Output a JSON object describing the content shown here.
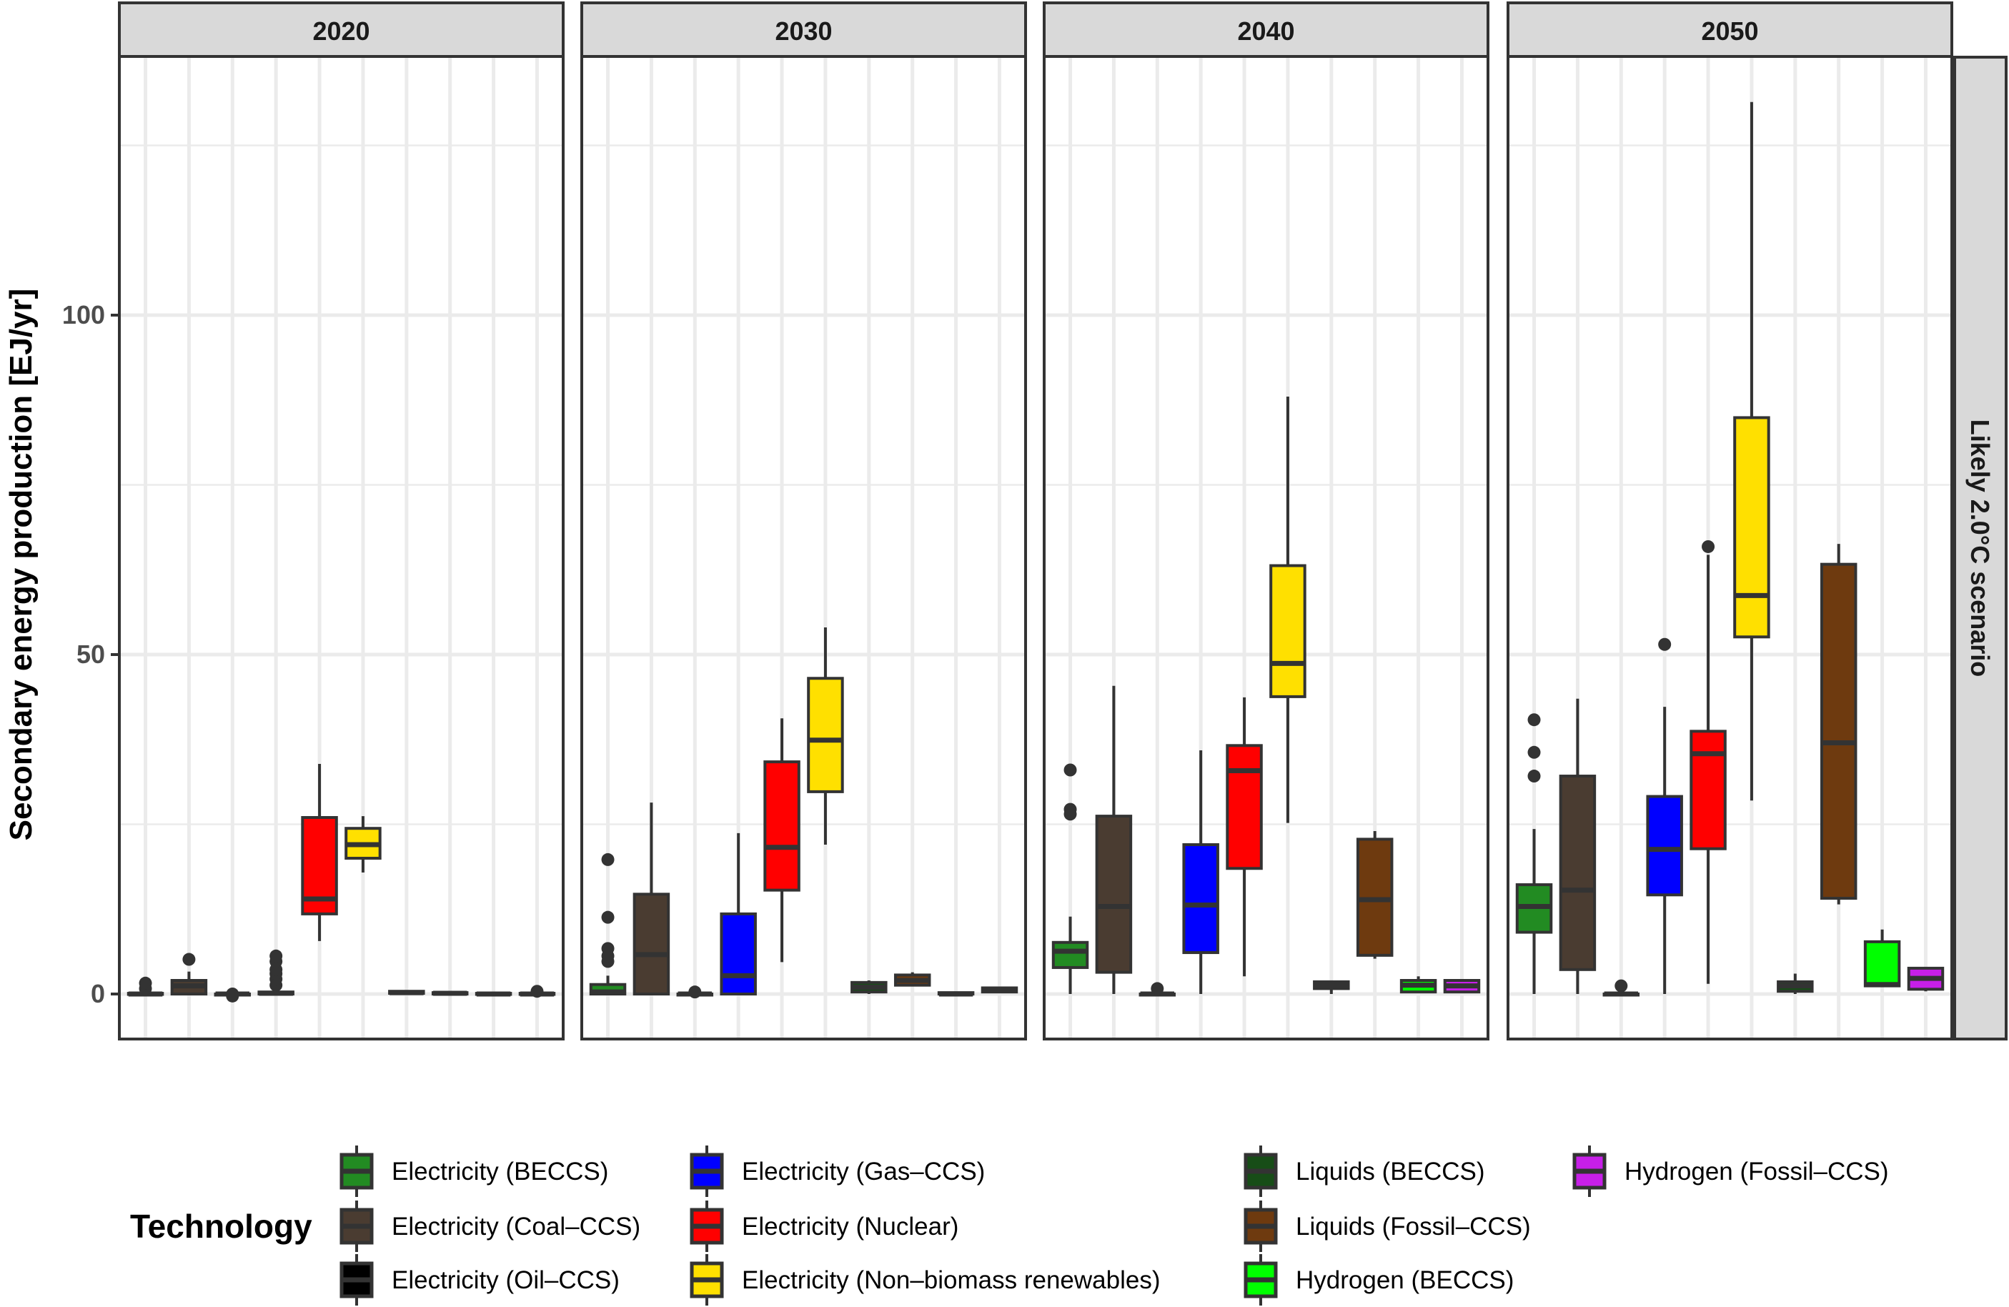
{
  "chart_data": {
    "type": "boxplot",
    "title": "",
    "xlabel": "",
    "ylabel": "Secondary energy production [EJ/yr]",
    "ylim": [
      -6.5,
      138
    ],
    "yticks": [
      0,
      50,
      100
    ],
    "ytick_labels": [
      "0",
      "50",
      "100"
    ],
    "grid": true,
    "facet_row_label": "Likely 2.0°C scenario",
    "legend": {
      "title": "Technology",
      "position": "bottom",
      "columns": [
        [
          "Electricity (BECCS)",
          "Electricity (Coal–CCS)",
          "Electricity (Oil–CCS)"
        ],
        [
          "Electricity (Gas–CCS)",
          "Electricity (Nuclear)",
          "Electricity (Non–biomass renewables)"
        ],
        [
          "Liquids (BECCS)",
          "Liquids (Fossil–CCS)",
          "Hydrogen (BECCS)"
        ],
        [
          "Hydrogen (Fossil–CCS)"
        ]
      ]
    },
    "technologies": [
      {
        "name": "Electricity (BECCS)",
        "color": "#228B22"
      },
      {
        "name": "Electricity (Coal–CCS)",
        "color": "#4A3C31"
      },
      {
        "name": "Electricity (Oil–CCS)",
        "color": "#000000"
      },
      {
        "name": "Electricity (Gas–CCS)",
        "color": "#0000FF"
      },
      {
        "name": "Electricity (Nuclear)",
        "color": "#FF0000"
      },
      {
        "name": "Electricity (Non–biomass renewables)",
        "color": "#FFE000"
      },
      {
        "name": "Liquids (BECCS)",
        "color": "#174D17"
      },
      {
        "name": "Liquids (Fossil–CCS)",
        "color": "#6E3A0F"
      },
      {
        "name": "Hydrogen (BECCS)",
        "color": "#00FF00"
      },
      {
        "name": "Hydrogen (Fossil–CCS)",
        "color": "#C71FE8"
      }
    ],
    "panels": [
      {
        "year": "2020",
        "boxes": [
          {
            "lo": 0,
            "q1": 0,
            "med": 0,
            "q3": 0.1,
            "hi": 0.3,
            "outliers": [
              0.8,
              1.6
            ]
          },
          {
            "lo": 0,
            "q1": 0,
            "med": 1.2,
            "q3": 2.0,
            "hi": 3.3,
            "outliers": [
              5.1
            ]
          },
          {
            "lo": 0,
            "q1": 0,
            "med": 0,
            "q3": 0,
            "hi": 0,
            "outliers": [
              0,
              -0.3
            ]
          },
          {
            "lo": 0,
            "q1": 0,
            "med": 0.1,
            "q3": 0.3,
            "hi": 0.6,
            "outliers": [
              1.3,
              2.2,
              3.0,
              3.6,
              4.8,
              5.6
            ]
          },
          {
            "lo": 7.8,
            "q1": 11.8,
            "med": 14.0,
            "q3": 26.0,
            "hi": 33.9,
            "outliers": []
          },
          {
            "lo": 17.9,
            "q1": 20.0,
            "med": 22.0,
            "q3": 24.4,
            "hi": 26.2,
            "outliers": []
          },
          {
            "lo": 0,
            "q1": 0.1,
            "med": 0.2,
            "q3": 0.4,
            "hi": 0.4,
            "outliers": []
          },
          {
            "lo": 0,
            "q1": 0,
            "med": 0.1,
            "q3": 0.2,
            "hi": 0.2,
            "outliers": []
          },
          {
            "lo": 0,
            "q1": 0,
            "med": 0,
            "q3": 0.1,
            "hi": 0.1,
            "outliers": []
          },
          {
            "lo": 0,
            "q1": 0,
            "med": 0,
            "q3": 0.1,
            "hi": 0.1,
            "outliers": [
              0.4
            ]
          }
        ]
      },
      {
        "year": "2030",
        "boxes": [
          {
            "lo": 0,
            "q1": 0,
            "med": 0.3,
            "q3": 1.4,
            "hi": 2.7,
            "outliers": [
              4.8,
              5.6,
              6.7,
              11.3,
              19.8
            ]
          },
          {
            "lo": 0,
            "q1": 0,
            "med": 5.8,
            "q3": 14.7,
            "hi": 28.2,
            "outliers": []
          },
          {
            "lo": 0,
            "q1": 0,
            "med": 0,
            "q3": 0,
            "hi": 0,
            "outliers": [
              0.3
            ]
          },
          {
            "lo": 0,
            "q1": 0,
            "med": 2.7,
            "q3": 11.8,
            "hi": 23.7,
            "outliers": []
          },
          {
            "lo": 4.7,
            "q1": 15.3,
            "med": 21.6,
            "q3": 34.2,
            "hi": 40.6,
            "outliers": []
          },
          {
            "lo": 22.0,
            "q1": 29.8,
            "med": 37.4,
            "q3": 46.5,
            "hi": 54.0,
            "outliers": []
          },
          {
            "lo": 0,
            "q1": 0.3,
            "med": 1.0,
            "q3": 1.7,
            "hi": 2.0,
            "outliers": []
          },
          {
            "lo": 1.3,
            "q1": 1.3,
            "med": 2.0,
            "q3": 2.8,
            "hi": 3.2,
            "outliers": []
          },
          {
            "lo": 0,
            "q1": 0,
            "med": 0,
            "q3": 0.2,
            "hi": 0.2,
            "outliers": []
          },
          {
            "lo": 0.3,
            "q1": 0.3,
            "med": 0.6,
            "q3": 0.9,
            "hi": 0.9,
            "outliers": []
          }
        ]
      },
      {
        "year": "2040",
        "boxes": [
          {
            "lo": 0,
            "q1": 3.9,
            "med": 6.3,
            "q3": 7.6,
            "hi": 11.4,
            "outliers": [
              26.5,
              27.2,
              33.0
            ]
          },
          {
            "lo": 0,
            "q1": 3.2,
            "med": 12.9,
            "q3": 26.2,
            "hi": 45.4,
            "outliers": []
          },
          {
            "lo": 0,
            "q1": 0,
            "med": 0,
            "q3": 0,
            "hi": 0,
            "outliers": [
              0.8
            ]
          },
          {
            "lo": 0,
            "q1": 6.1,
            "med": 13.1,
            "q3": 22.0,
            "hi": 35.9,
            "outliers": []
          },
          {
            "lo": 2.6,
            "q1": 18.5,
            "med": 32.9,
            "q3": 36.6,
            "hi": 43.7,
            "outliers": []
          },
          {
            "lo": 25.2,
            "q1": 43.8,
            "med": 48.7,
            "q3": 63.1,
            "hi": 88.0,
            "outliers": []
          },
          {
            "lo": 0,
            "q1": 0.8,
            "med": 1.3,
            "q3": 1.8,
            "hi": 2.0,
            "outliers": []
          },
          {
            "lo": 5.2,
            "q1": 5.7,
            "med": 13.9,
            "q3": 22.8,
            "hi": 24.0,
            "outliers": []
          },
          {
            "lo": 0.3,
            "q1": 0.3,
            "med": 1.3,
            "q3": 2.0,
            "hi": 2.6,
            "outliers": []
          },
          {
            "lo": 0.3,
            "q1": 0.3,
            "med": 1.2,
            "q3": 2.0,
            "hi": 2.0,
            "outliers": []
          }
        ]
      },
      {
        "year": "2050",
        "boxes": [
          {
            "lo": 0,
            "q1": 9.1,
            "med": 12.9,
            "q3": 16.1,
            "hi": 24.3,
            "outliers": [
              32.1,
              35.6,
              40.4
            ]
          },
          {
            "lo": 0,
            "q1": 3.6,
            "med": 15.3,
            "q3": 32.1,
            "hi": 43.5,
            "outliers": []
          },
          {
            "lo": 0,
            "q1": 0,
            "med": 0,
            "q3": 0,
            "hi": 0,
            "outliers": [
              1.2
            ]
          },
          {
            "lo": 0,
            "q1": 14.6,
            "med": 21.3,
            "q3": 29.1,
            "hi": 42.3,
            "outliers": [
              51.5
            ]
          },
          {
            "lo": 1.5,
            "q1": 21.4,
            "med": 35.4,
            "q3": 38.7,
            "hi": 64.7,
            "outliers": [
              65.9
            ]
          },
          {
            "lo": 28.5,
            "q1": 52.6,
            "med": 58.7,
            "q3": 84.9,
            "hi": 131.4,
            "outliers": []
          },
          {
            "lo": 0,
            "q1": 0.4,
            "med": 1.2,
            "q3": 1.8,
            "hi": 3.0,
            "outliers": []
          },
          {
            "lo": 13.2,
            "q1": 14.1,
            "med": 37.0,
            "q3": 63.3,
            "hi": 66.3,
            "outliers": []
          },
          {
            "lo": 1.2,
            "q1": 1.2,
            "med": 1.4,
            "q3": 7.7,
            "hi": 9.5,
            "outliers": []
          },
          {
            "lo": 0.4,
            "q1": 0.7,
            "med": 2.3,
            "q3": 3.8,
            "hi": 3.8,
            "outliers": []
          }
        ]
      }
    ]
  }
}
